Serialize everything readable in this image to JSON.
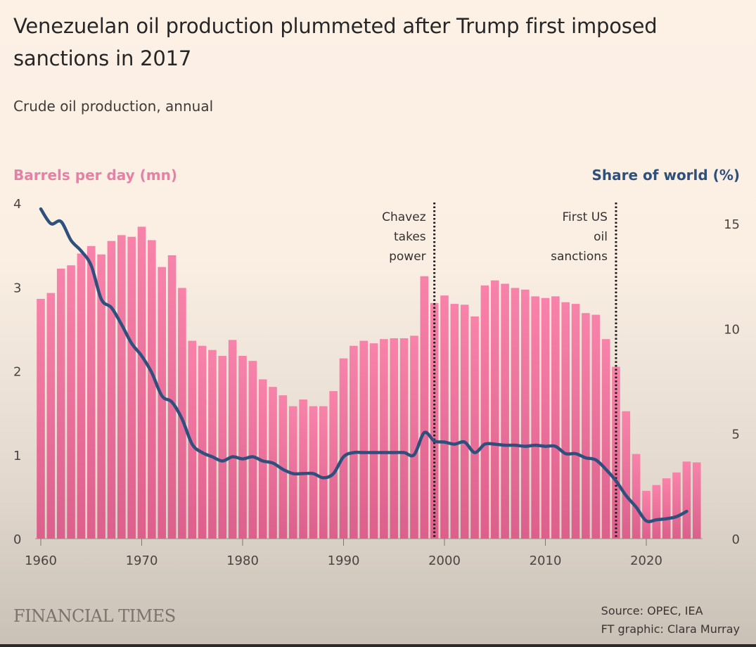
{
  "chart_data": {
    "type": "bar",
    "title": "Venezuelan oil production plummeted after Trump first imposed sanctions in 2017",
    "subtitle": "Crude oil production, annual",
    "left_axis": {
      "label": "Barrels per day (mn)",
      "ylim": [
        0,
        4
      ],
      "ticks": [
        0,
        1,
        2,
        3,
        4
      ],
      "color": "#e87fa6"
    },
    "right_axis": {
      "label": "Share of world (%)",
      "ylim": [
        0,
        16
      ],
      "ticks": [
        0,
        5,
        10,
        15
      ],
      "color": "#2f4f7c"
    },
    "x_ticks": [
      1960,
      1970,
      1980,
      1990,
      2000,
      2010,
      2020
    ],
    "x": [
      1960,
      1961,
      1962,
      1963,
      1964,
      1965,
      1966,
      1967,
      1968,
      1969,
      1970,
      1971,
      1972,
      1973,
      1974,
      1975,
      1976,
      1977,
      1978,
      1979,
      1980,
      1981,
      1982,
      1983,
      1984,
      1985,
      1986,
      1987,
      1988,
      1989,
      1990,
      1991,
      1992,
      1993,
      1994,
      1995,
      1996,
      1997,
      1998,
      1999,
      2000,
      2001,
      2002,
      2003,
      2004,
      2005,
      2006,
      2007,
      2008,
      2009,
      2010,
      2011,
      2012,
      2013,
      2014,
      2015,
      2016,
      2017,
      2018,
      2019,
      2020,
      2021,
      2022,
      2023,
      2024,
      2025
    ],
    "series": [
      {
        "name": "Barrels per day (mn)",
        "type": "bar",
        "axis": "left",
        "color": "#f27ea3",
        "values": [
          2.86,
          2.93,
          3.22,
          3.26,
          3.4,
          3.49,
          3.39,
          3.55,
          3.62,
          3.6,
          3.72,
          3.56,
          3.24,
          3.38,
          2.99,
          2.36,
          2.3,
          2.25,
          2.18,
          2.37,
          2.18,
          2.12,
          1.9,
          1.81,
          1.71,
          1.58,
          1.66,
          1.58,
          1.58,
          1.76,
          2.15,
          2.3,
          2.36,
          2.33,
          2.38,
          2.39,
          2.39,
          2.42,
          3.13,
          2.81,
          2.9,
          2.8,
          2.79,
          2.65,
          3.02,
          3.08,
          3.04,
          2.99,
          2.97,
          2.89,
          2.87,
          2.89,
          2.82,
          2.8,
          2.69,
          2.67,
          2.38,
          2.05,
          1.52,
          1.01,
          0.57,
          0.64,
          0.72,
          0.79,
          0.92,
          0.91
        ]
      },
      {
        "name": "Share of world (%)",
        "type": "line",
        "axis": "right",
        "color": "#2f4f7c",
        "x_range": [
          1960,
          2024
        ],
        "values": [
          15.7,
          15.0,
          15.1,
          14.2,
          13.7,
          13.0,
          11.4,
          11.0,
          10.2,
          9.3,
          8.7,
          7.9,
          6.8,
          6.5,
          5.7,
          4.5,
          4.1,
          3.9,
          3.7,
          3.9,
          3.8,
          3.9,
          3.7,
          3.6,
          3.3,
          3.1,
          3.1,
          3.1,
          2.9,
          3.1,
          3.9,
          4.1,
          4.1,
          4.1,
          4.1,
          4.1,
          4.1,
          4.0,
          5.05,
          4.65,
          4.6,
          4.5,
          4.6,
          4.1,
          4.5,
          4.5,
          4.45,
          4.45,
          4.4,
          4.45,
          4.4,
          4.4,
          4.05,
          4.05,
          3.85,
          3.75,
          3.3,
          2.75,
          2.05,
          1.5,
          0.85,
          0.9,
          0.95,
          1.05,
          1.3
        ]
      }
    ],
    "annotations": [
      {
        "x": 1999,
        "lines": [
          "Chavez",
          "takes",
          "power"
        ]
      },
      {
        "x": 2017,
        "lines": [
          "First US",
          "oil",
          "sanctions"
        ]
      }
    ],
    "grid": false
  },
  "footer": {
    "brand": "FINANCIAL TIMES",
    "source": "Source: OPEC, IEA",
    "credit": "FT graphic: Clara Murray"
  }
}
